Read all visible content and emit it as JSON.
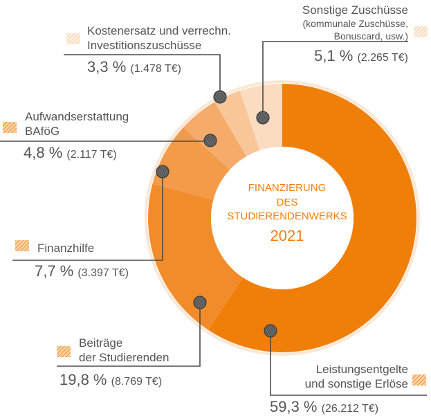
{
  "chart_data": {
    "type": "pie",
    "variant": "donut",
    "center_title_lines": [
      "FINANZIERUNG",
      "DES",
      "STUDIERENDENWERKS"
    ],
    "center_year": "2021",
    "slices": [
      {
        "name_lines": [
          "Leistungsentgelte",
          "und sonstige Erlöse"
        ],
        "percent": 59.3,
        "percent_label": "59,3 %",
        "amount_label": "(26.212 T€)",
        "value": 26212,
        "color": "#f07f0a"
      },
      {
        "name_lines": [
          "Beiträge",
          "der Studierenden"
        ],
        "percent": 19.8,
        "percent_label": "19,8 %",
        "amount_label": "(8.769 T€)",
        "value": 8769,
        "color": "#f28c2b"
      },
      {
        "name_lines": [
          "Finanzhilfe"
        ],
        "percent": 7.7,
        "percent_label": "7,7 %",
        "amount_label": "(3.397 T€)",
        "value": 3397,
        "color": "#f39b48"
      },
      {
        "name_lines": [
          "Aufwandserstattung",
          "BAföG"
        ],
        "percent": 4.8,
        "percent_label": "4,8 %",
        "amount_label": "(2.117 T€)",
        "value": 2117,
        "color": "#f5ac6a"
      },
      {
        "name_lines": [
          "Kostenersatz und verrechn.",
          "Investitionszuschüsse"
        ],
        "percent": 3.3,
        "percent_label": "3,3 %",
        "amount_label": "(1.478 T€)",
        "value": 1478,
        "color": "#f8c699"
      },
      {
        "name_lines": [
          "Sonstige Zuschüsse",
          "(kommunale Zuschüsse,",
          "Bonuscard, usw.)"
        ],
        "percent": 5.1,
        "percent_label": "5,1 %",
        "amount_label": "(2.265 T€)",
        "value": 2265,
        "color": "#fbdcc0"
      }
    ]
  }
}
